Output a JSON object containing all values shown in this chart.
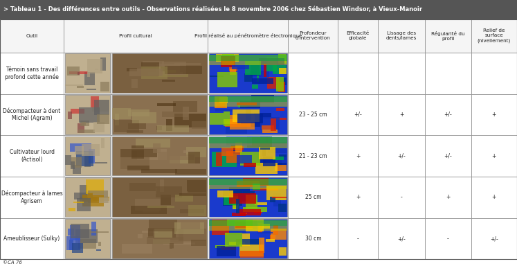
{
  "title": "> Tableau 1 - Des différences entre outils - Observations réalisées le 8 novembre 2006 chez Sébastien Windsor, à Vieux-Manoir",
  "title_bg": "#555555",
  "title_color": "#ffffff",
  "cell_bg": "#ffffff",
  "header_bg": "#f5f5f5",
  "border_color": "#999999",
  "col_headers": [
    "Outil",
    "Profil cultural",
    "Profil réalisé au pénétromètre électronique",
    "Profondeur\nd'intervention",
    "Efficacité\nglobale",
    "Lissage des\ndents/lames",
    "Régularité du\nprofil",
    "Relief de\nsurface\n(nivellement)"
  ],
  "rows": [
    {
      "outil": "Témoin sans travail\nprofond cette année",
      "profondeur": "",
      "efficacite": "",
      "lissage": "",
      "regularite": "",
      "relief": ""
    },
    {
      "outil": "Décompacteur à dent\nMichel (Agram)",
      "profondeur": "23 - 25 cm",
      "efficacite": "+/-",
      "lissage": "+",
      "regularite": "+/-",
      "relief": "+"
    },
    {
      "outil": "Cultivateur lourd\n(Actisol)",
      "profondeur": "21 - 23 cm",
      "efficacite": "+",
      "lissage": "+/-",
      "regularite": "+/-",
      "relief": "+"
    },
    {
      "outil": "Décompacteur à lames\nAgrisem",
      "profondeur": "25 cm",
      "efficacite": "+",
      "lissage": "-",
      "regularite": "+",
      "relief": "+"
    },
    {
      "outil": "Ameublisseur (Sulky)",
      "profondeur": "30 cm",
      "efficacite": "-",
      "lissage": "+/-",
      "regularite": "-",
      "relief": "+/-"
    }
  ],
  "footer_text": "©CA 76",
  "fig_width": 7.47,
  "fig_height": 3.84,
  "dpi": 100,
  "title_fontsize": 6.0,
  "header_fontsize": 5.2,
  "cell_fontsize": 5.5
}
